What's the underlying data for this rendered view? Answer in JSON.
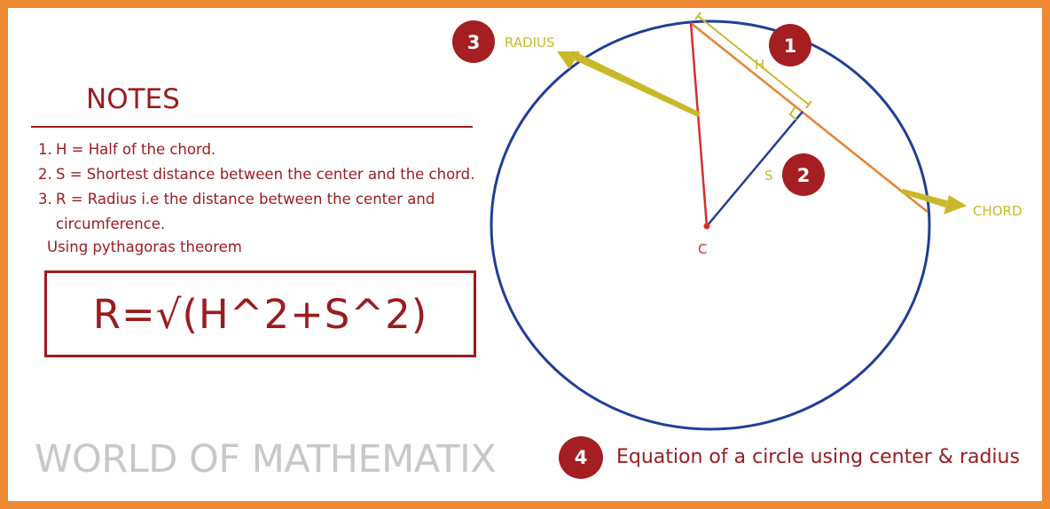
{
  "notes": {
    "title": "NOTES",
    "items": [
      {
        "num": "1.",
        "text": "H = Half of the chord."
      },
      {
        "num": "2.",
        "text": "S = Shortest distance between the center and the chord."
      },
      {
        "num": "3.",
        "text": "R = Radius i.e the distance between the center and circumference."
      }
    ],
    "subtitle": "Using pythagoras theorem",
    "formula": "R=√(H^2+S^2)"
  },
  "brand": "WORLD OF MATHEMATIX",
  "caption": {
    "number": "4",
    "text": "Equation of a circle using center & radius"
  },
  "diagram": {
    "labels": {
      "center": "C",
      "h": "H",
      "s": "S",
      "radius": "RADIUS",
      "chord": "CHORD"
    },
    "badges": [
      "1",
      "2",
      "3"
    ]
  },
  "colors": {
    "border": "#EE8A34",
    "primary": "#9B1C20",
    "badge": "#A41E22",
    "circle": "#1F3E97",
    "radius_line": "#D92D2D",
    "chord_line": "#E9822F",
    "annotation": "#C9B82A",
    "brand_text": "#C8C8C8"
  }
}
